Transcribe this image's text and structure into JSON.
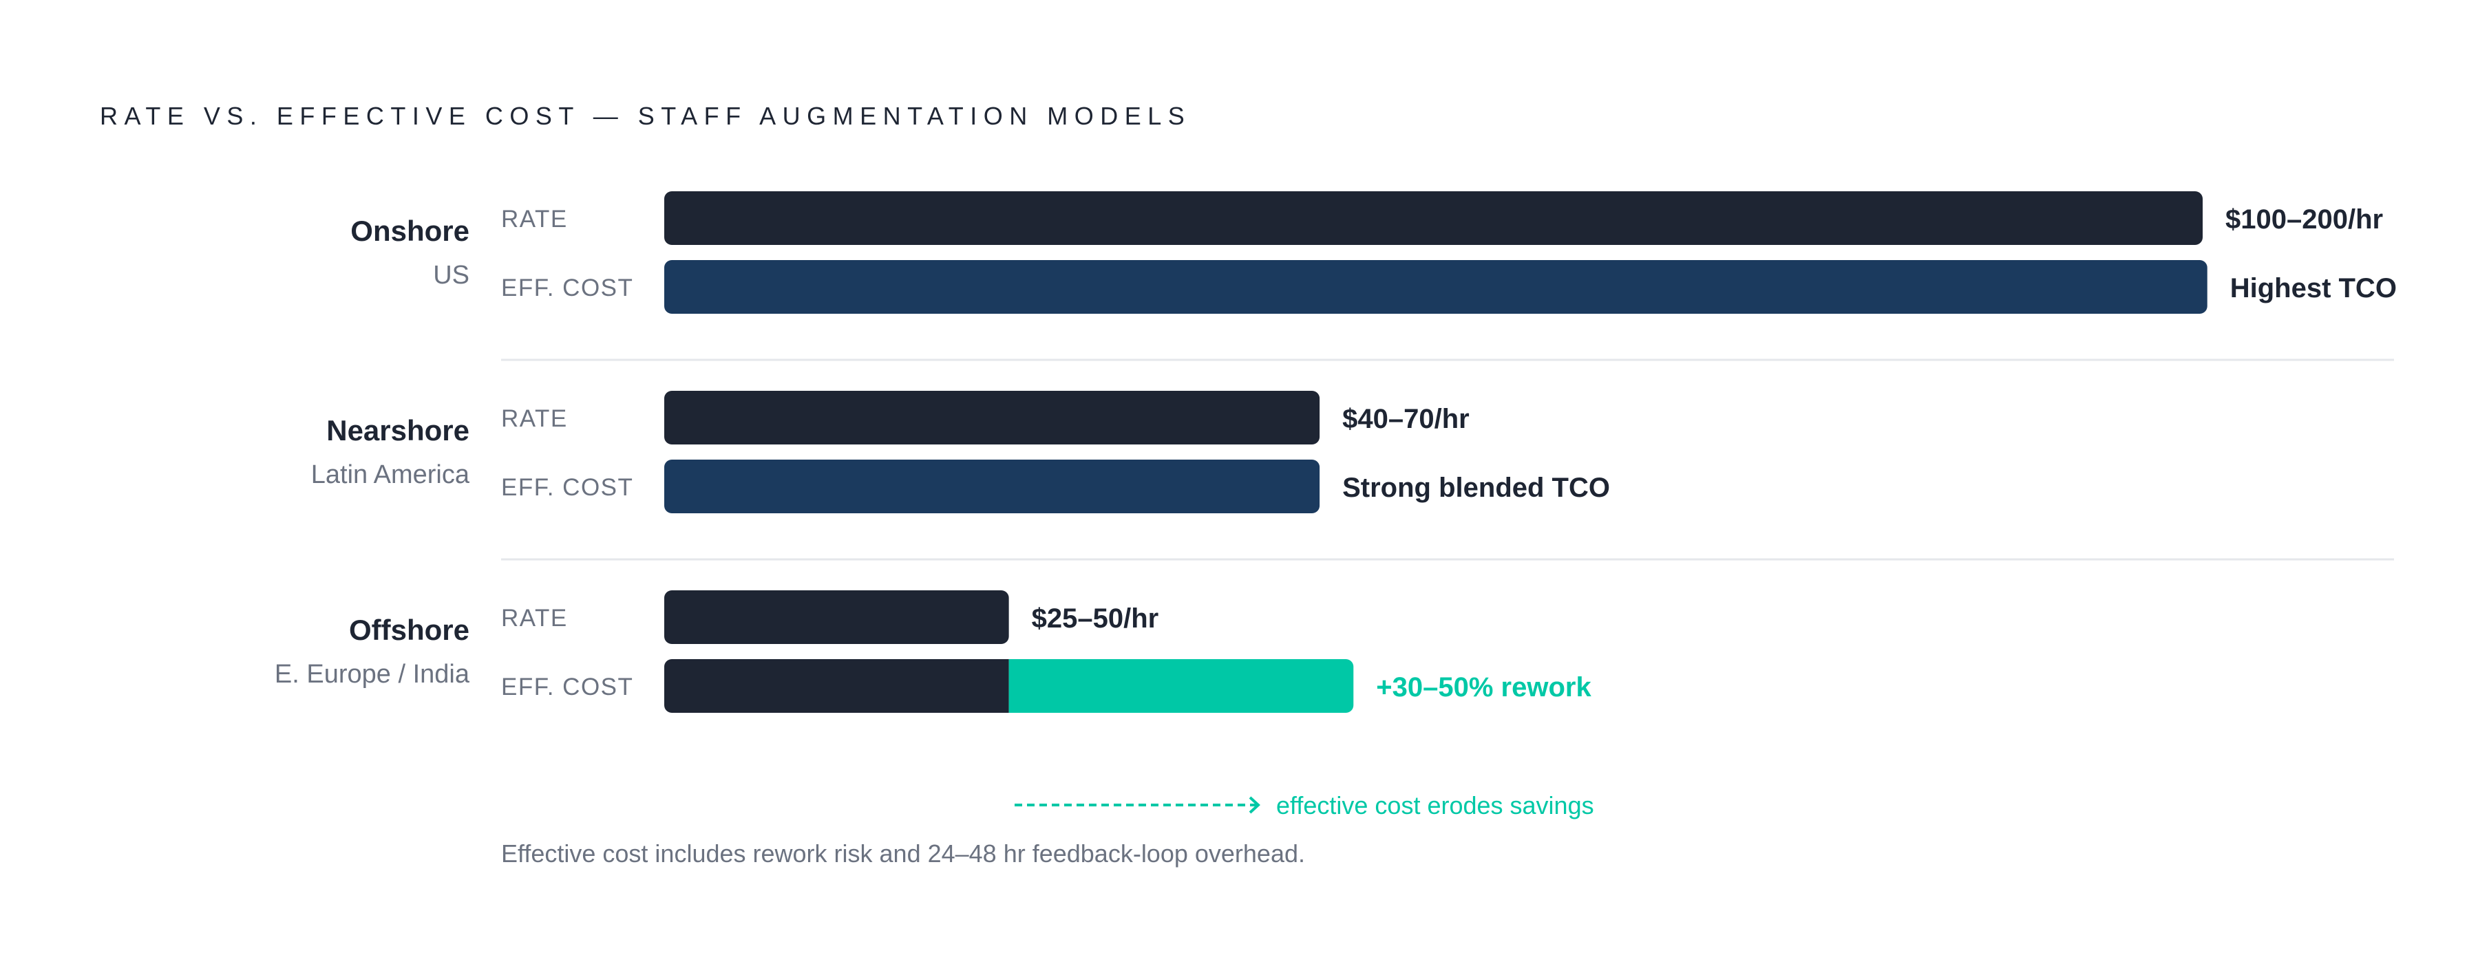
{
  "chart_data": {
    "type": "bar",
    "title": "RATE VS. EFFECTIVE COST — STAFF AUGMENTATION MODELS",
    "row_labels": [
      "RATE",
      "EFF. COST"
    ],
    "groups": [
      {
        "name": "Onshore",
        "sub": "US",
        "rate_label": "$100–200/hr",
        "eff_label": "Highest TCO",
        "rate": 100,
        "eff": 100.3
      },
      {
        "name": "Nearshore",
        "sub": "Latin America",
        "rate_label": "$40–70/hr",
        "eff_label": "Strong blended TCO",
        "rate": 42.6,
        "eff": 42.6
      },
      {
        "name": "Offshore",
        "sub": "E. Europe / India",
        "rate_label": "$25–50/hr",
        "eff_label": "+30–50% rework",
        "rate": 22.4,
        "eff": 22.4,
        "rework": 22.4
      }
    ],
    "annotation": "effective cost erodes savings",
    "footnote": "Effective cost includes rework risk and 24–48 hr feedback-loop overhead.",
    "colors": {
      "rate": "#1e2533",
      "eff": "#1b3a5e",
      "rework": "#00c8a6",
      "text": "#1e2533",
      "muted": "#6b7280",
      "divider": "#e5e7eb"
    }
  }
}
